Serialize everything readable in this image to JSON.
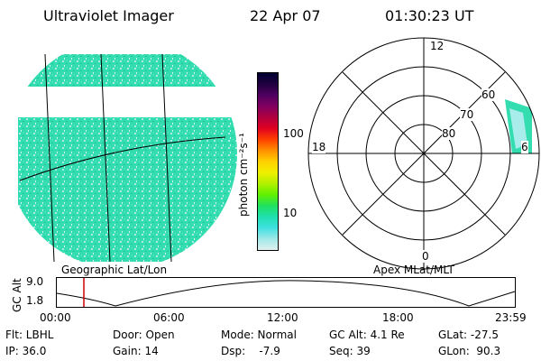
{
  "header": {
    "instrument": "Ultraviolet Imager",
    "date": "22 Apr 07",
    "time": "01:30:23 UT"
  },
  "colorbar": {
    "label": "photon cm⁻²s⁻¹",
    "ticks": [
      "100",
      "10"
    ],
    "colors": [
      "#000030",
      "#200040",
      "#500060",
      "#800060",
      "#b00040",
      "#e00020",
      "#ff4000",
      "#ff9000",
      "#ffd000",
      "#f0f000",
      "#b0f000",
      "#60f000",
      "#20e060",
      "#20e0b0",
      "#40e0e0",
      "#a0e8e8",
      "#e0f0f0"
    ]
  },
  "left_panel": {
    "caption": "Geographic Lat/Lon",
    "fill_color": "#33ddb0"
  },
  "right_panel": {
    "caption": "Apex MLat/MLT",
    "mlt_labels": {
      "top": "12",
      "left": "18",
      "right": "6",
      "bottom": "0"
    },
    "lat_labels": [
      "60",
      "70",
      "80"
    ]
  },
  "orbit": {
    "ylabel": "GC Alt",
    "ymax": "9.0",
    "ymin": "1.8",
    "xticks": [
      "00:00",
      "06:00",
      "12:00",
      "18:00",
      "23:59"
    ],
    "marker_color": "#cc0000"
  },
  "info": {
    "flt": "Flt: LBHL",
    "ip": "IP: 36.0",
    "door": "Door: Open",
    "gain": "Gain: 14",
    "mode": "Mode: Normal",
    "dsp": "Dsp:    -7.9",
    "gcalt": "GC Alt: 4.1 Re",
    "seq": "Seq: 39",
    "glat": "GLat: -27.5",
    "glon": "GLon:  90.3"
  }
}
